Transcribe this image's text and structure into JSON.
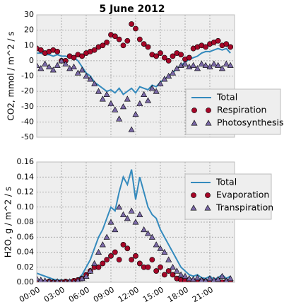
{
  "chart_data": [
    {
      "type": "line",
      "title": "5 June 2012",
      "y_label": "CO2, mmol / m^2 / s",
      "x": [
        0,
        0.5,
        1,
        1.5,
        2,
        2.5,
        3,
        3.5,
        4,
        4.5,
        5,
        5.5,
        6,
        6.5,
        7,
        7.5,
        8,
        8.5,
        9,
        9.5,
        10,
        10.5,
        11,
        11.5,
        12,
        12.5,
        13,
        13.5,
        14,
        14.5,
        15,
        15.5,
        16,
        16.5,
        17,
        17.5,
        18,
        18.5,
        19,
        19.5,
        20,
        20.5,
        21,
        21.5,
        22,
        22.5,
        23,
        23.5
      ],
      "series": [
        {
          "name": "Total",
          "color": "#348abd",
          "mark": "line",
          "values": [
            5,
            5,
            4,
            4,
            3,
            4,
            3,
            3,
            2,
            2,
            0,
            -4,
            -8,
            -10,
            -14,
            -16,
            -18,
            -20,
            -19,
            -21,
            -18,
            -22,
            -20,
            -18,
            -21,
            -17,
            -18,
            -19,
            -16,
            -17,
            -14,
            -12,
            -10,
            -8,
            -5,
            -3,
            -1,
            1,
            2,
            3,
            5,
            6,
            6,
            7,
            8,
            7,
            8,
            5
          ]
        },
        {
          "name": "Respiration",
          "color": "#a60628",
          "mark": "circle",
          "values": [
            8,
            7,
            5,
            6,
            7,
            6,
            0,
            0,
            3,
            2,
            4,
            3,
            5,
            6,
            7,
            9,
            10,
            12,
            17,
            16,
            14,
            10,
            13,
            24,
            21,
            14,
            11,
            9,
            4,
            3,
            5,
            2,
            0,
            3,
            5,
            4,
            1,
            2,
            8,
            9,
            10,
            9,
            11,
            12,
            13,
            10,
            11,
            9
          ]
        },
        {
          "name": "Photosynthesis",
          "color": "#7a68a6",
          "mark": "triangle",
          "values": [
            -3,
            -5,
            -2,
            -4,
            -6,
            -3,
            0,
            -2,
            -5,
            -4,
            -8,
            -6,
            -10,
            -12,
            -15,
            -20,
            -25,
            -22,
            -28,
            -32,
            -38,
            -30,
            -25,
            -45,
            -35,
            -28,
            -22,
            -26,
            -18,
            -20,
            -15,
            -12,
            -10,
            -8,
            -5,
            -3,
            -2,
            -4,
            -3,
            -5,
            -2,
            -3,
            -4,
            -2,
            -3,
            -5,
            -2,
            -3
          ]
        }
      ],
      "xlim": [
        0,
        24
      ],
      "xticks": [
        0,
        3,
        6,
        9,
        12,
        15,
        18,
        21
      ],
      "ylim": [
        -50,
        30
      ],
      "yticks": [
        30,
        20,
        10,
        0,
        -10,
        -20,
        -30,
        -40,
        -50
      ],
      "grid": true,
      "legend": "right"
    },
    {
      "type": "line",
      "y_label": "H2O, g / m^2 / s",
      "x": [
        0,
        0.5,
        1,
        1.5,
        2,
        2.5,
        3,
        3.5,
        4,
        4.5,
        5,
        5.5,
        6,
        6.5,
        7,
        7.5,
        8,
        8.5,
        9,
        9.5,
        10,
        10.5,
        11,
        11.5,
        12,
        12.5,
        13,
        13.5,
        14,
        14.5,
        15,
        15.5,
        16,
        16.5,
        17,
        17.5,
        18,
        18.5,
        19,
        19.5,
        20,
        20.5,
        21,
        21.5,
        22,
        22.5,
        23,
        23.5
      ],
      "series": [
        {
          "name": "Total",
          "color": "#348abd",
          "mark": "line",
          "values": [
            0.012,
            0.01,
            0.008,
            0.006,
            0.004,
            0.003,
            0.003,
            0.002,
            0.003,
            0.002,
            0.004,
            0.01,
            0.02,
            0.03,
            0.045,
            0.06,
            0.07,
            0.085,
            0.1,
            0.095,
            0.12,
            0.14,
            0.13,
            0.15,
            0.11,
            0.14,
            0.12,
            0.1,
            0.09,
            0.085,
            0.07,
            0.06,
            0.05,
            0.04,
            0.03,
            0.02,
            0.015,
            0.01,
            0.008,
            0.01,
            0.006,
            0.005,
            0.008,
            0.004,
            0.006,
            0.01,
            0.005,
            0.008
          ]
        },
        {
          "name": "Evaporation",
          "color": "#a60628",
          "mark": "circle",
          "values": [
            0.002,
            0.001,
            0,
            0.001,
            0,
            0,
            0,
            0.001,
            0,
            0.002,
            0.003,
            0.005,
            0.01,
            0.015,
            0.02,
            0.02,
            0.025,
            0.03,
            0.035,
            0.04,
            0.03,
            0.05,
            0.045,
            0.03,
            0.035,
            0.025,
            0.02,
            0.02,
            0.03,
            0.015,
            0.02,
            0.01,
            0.015,
            0.01,
            0.005,
            0.003,
            0.002,
            0.003,
            0.001,
            0,
            0.002,
            0.001,
            0,
            0.001,
            0.002,
            0,
            0.001,
            0
          ]
        },
        {
          "name": "Transpiration",
          "color": "#7a68a6",
          "mark": "triangle",
          "values": [
            0.005,
            0.003,
            0.002,
            0.001,
            0,
            0.001,
            0,
            0,
            0.001,
            0,
            0.002,
            0.005,
            0.008,
            0.015,
            0.025,
            0.04,
            0.05,
            0.06,
            0.08,
            0.07,
            0.1,
            0.09,
            0.085,
            0.095,
            0.08,
            0.09,
            0.07,
            0.065,
            0.06,
            0.05,
            0.045,
            0.04,
            0.03,
            0.02,
            0.015,
            0.01,
            0.008,
            0.005,
            0.004,
            0.006,
            0.003,
            0.002,
            0.005,
            0.003,
            0.004,
            0.008,
            0.002,
            0.005
          ]
        }
      ],
      "xlim": [
        0,
        24
      ],
      "xticks": [
        {
          "value": 0,
          "label": "00:00"
        },
        {
          "value": 3,
          "label": "03:00"
        },
        {
          "value": 6,
          "label": "06:00"
        },
        {
          "value": 9,
          "label": "09:00"
        },
        {
          "value": 12,
          "label": "12:00"
        },
        {
          "value": 15,
          "label": "15:00"
        },
        {
          "value": 18,
          "label": "18:00"
        },
        {
          "value": 21,
          "label": "21:00"
        }
      ],
      "ylim": [
        0,
        0.16
      ],
      "yticks": [
        {
          "value": 0.16,
          "label": "0.16"
        },
        {
          "value": 0.14,
          "label": "0.14"
        },
        {
          "value": 0.12,
          "label": "0.12"
        },
        {
          "value": 0.1,
          "label": "0.10"
        },
        {
          "value": 0.08,
          "label": "0.08"
        },
        {
          "value": 0.06,
          "label": "0.06"
        },
        {
          "value": 0.04,
          "label": "0.04"
        },
        {
          "value": 0.02,
          "label": "0.02"
        },
        {
          "value": 0,
          "label": "0.00"
        }
      ],
      "grid": true,
      "legend": "right"
    }
  ]
}
